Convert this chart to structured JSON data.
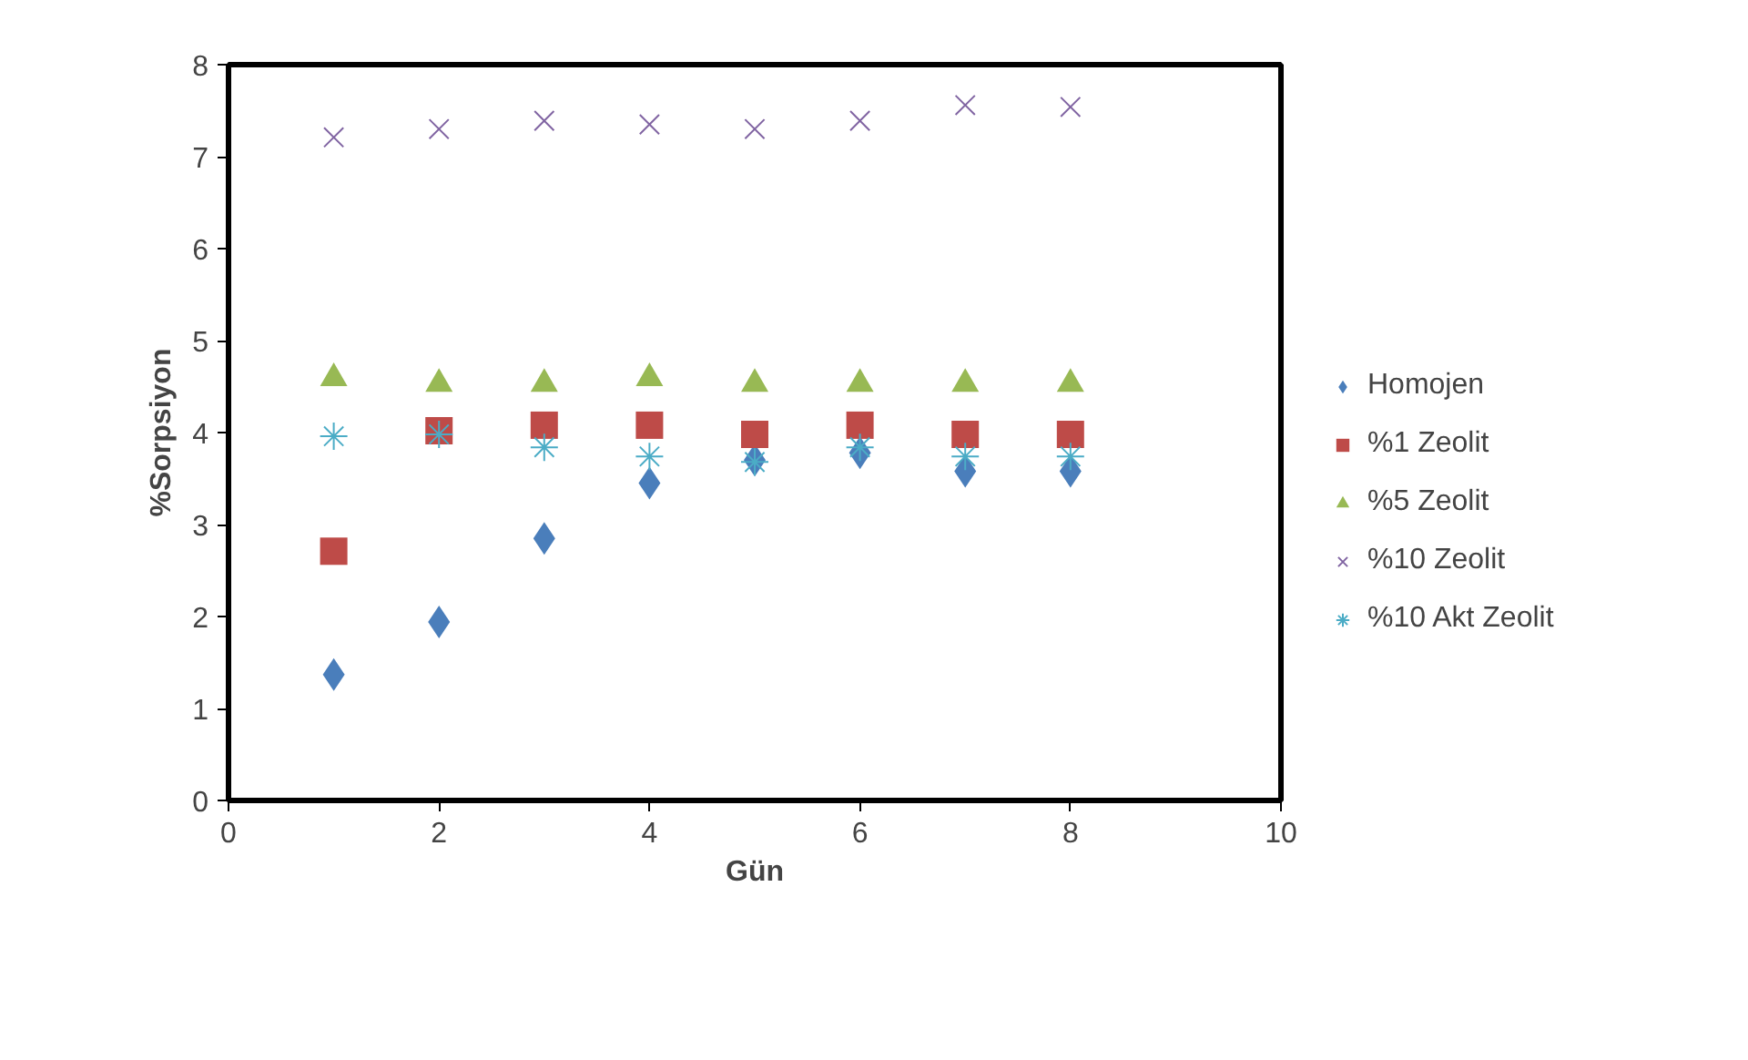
{
  "chart_data": {
    "type": "scatter",
    "xlabel": "Gün",
    "ylabel": "%Sorpsiyon",
    "x": [
      1,
      2,
      3,
      4,
      5,
      6,
      7,
      8
    ],
    "xlim": [
      0,
      10
    ],
    "xticks": [
      0,
      2,
      4,
      6,
      8,
      10
    ],
    "ylim": [
      0,
      8
    ],
    "yticks": [
      0,
      1,
      2,
      3,
      4,
      5,
      6,
      7,
      8
    ],
    "grid": false,
    "legend": "right",
    "series": [
      {
        "name": "Homojen",
        "color": "#4a7ebb",
        "marker": "diamond",
        "values": [
          1.37,
          1.94,
          2.85,
          3.45,
          3.7,
          3.78,
          3.58,
          3.58
        ]
      },
      {
        "name": "%1 Zeolit",
        "color": "#be4b48",
        "marker": "square",
        "values": [
          2.71,
          4.02,
          4.08,
          4.08,
          3.98,
          4.08,
          3.98,
          3.98
        ]
      },
      {
        "name": "%5 Zeolit",
        "color": "#98b954",
        "marker": "triangle",
        "values": [
          4.59,
          4.53,
          4.53,
          4.59,
          4.53,
          4.53,
          4.53,
          4.53
        ]
      },
      {
        "name": "%10 Zeolit",
        "color": "#8064a2",
        "marker": "cross",
        "values": [
          7.21,
          7.3,
          7.39,
          7.35,
          7.3,
          7.39,
          7.56,
          7.54
        ]
      },
      {
        "name": "%10 Akt Zeolit",
        "color": "#4bacc6",
        "values": [
          3.96,
          3.98,
          3.84,
          3.74,
          3.68,
          3.84,
          3.74,
          3.74
        ]
      }
    ]
  }
}
